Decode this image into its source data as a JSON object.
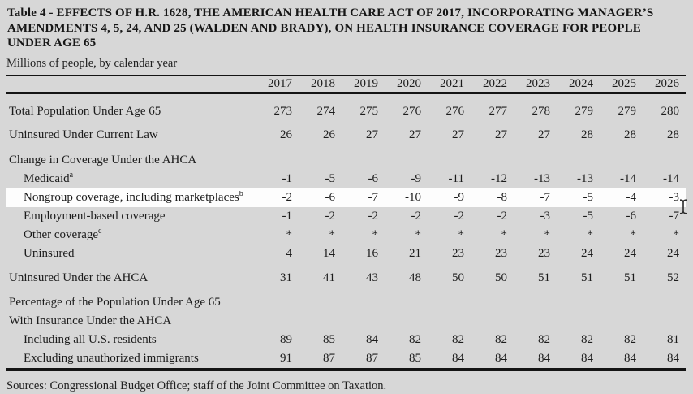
{
  "page": {
    "title_lines": [
      "Table 4 - EFFECTS OF H.R. 1628, THE AMERICAN HEALTH CARE ACT OF 2017, INCORPORATING MANAGER’S",
      "AMENDMENTS 4, 5, 24, AND 25 (WALDEN AND BRADY), ON HEALTH INSURANCE COVERAGE FOR PEOPLE",
      "UNDER AGE 65"
    ],
    "subtitle": "Millions of people, by calendar year",
    "sources": "Sources: Congressional Budget Office; staff of the Joint Committee on Taxation."
  },
  "colors": {
    "page_background": "#d7d7d7",
    "highlight_row_background": "#fdfdfd",
    "text": "#1c1c1c",
    "rule": "#141414"
  },
  "icons": {
    "cursor": "text-ibeam-cursor"
  },
  "chart_data": {
    "type": "table",
    "title": "Table 4 - EFFECTS OF H.R. 1628, THE AMERICAN HEALTH CARE ACT OF 2017, INCORPORATING MANAGER’S AMENDMENTS 4, 5, 24, AND 25 (WALDEN AND BRADY), ON HEALTH INSURANCE COVERAGE FOR PEOPLE UNDER AGE 65",
    "unit_note": "Millions of people, by calendar year",
    "columns": [
      "2017",
      "2018",
      "2019",
      "2020",
      "2021",
      "2022",
      "2023",
      "2024",
      "2025",
      "2026"
    ],
    "rows": [
      {
        "label": "Total Population Under Age 65",
        "indent": 0,
        "gap": "first",
        "values": [
          "273",
          "274",
          "275",
          "276",
          "276",
          "277",
          "278",
          "279",
          "279",
          "280"
        ]
      },
      {
        "label": "Uninsured Under Current Law",
        "indent": 0,
        "gap": "sm",
        "values": [
          "26",
          "26",
          "27",
          "27",
          "27",
          "27",
          "27",
          "28",
          "28",
          "28"
        ]
      },
      {
        "label": "Change in Coverage Under the AHCA",
        "indent": 0,
        "gap": "lg",
        "values": []
      },
      {
        "label": "Medicaid",
        "sup": "a",
        "indent": 1,
        "values": [
          "-1",
          "-5",
          "-6",
          "-9",
          "-11",
          "-12",
          "-13",
          "-13",
          "-14",
          "-14"
        ]
      },
      {
        "label": "Nongroup coverage, including marketplaces",
        "sup": "b",
        "indent": 1,
        "highlight": true,
        "values": [
          "-2",
          "-6",
          "-7",
          "-10",
          "-9",
          "-8",
          "-7",
          "-5",
          "-4",
          "-3"
        ]
      },
      {
        "label": "Employment-based coverage",
        "indent": 1,
        "values": [
          "-1",
          "-2",
          "-2",
          "-2",
          "-2",
          "-2",
          "-3",
          "-5",
          "-6",
          "-7"
        ]
      },
      {
        "label": "Other coverage",
        "sup": "c",
        "indent": 1,
        "values": [
          "*",
          "*",
          "*",
          "*",
          "*",
          "*",
          "*",
          "*",
          "*",
          "*"
        ]
      },
      {
        "label": "Uninsured",
        "indent": 1,
        "values": [
          "4",
          "14",
          "16",
          "21",
          "23",
          "23",
          "23",
          "24",
          "24",
          "24"
        ]
      },
      {
        "label": "Uninsured Under the AHCA",
        "indent": 0,
        "gap": "md",
        "values": [
          "31",
          "41",
          "43",
          "48",
          "50",
          "50",
          "51",
          "51",
          "51",
          "52"
        ]
      },
      {
        "label": "Percentage of the Population Under Age 65",
        "indent": 0,
        "gap": "md",
        "values": []
      },
      {
        "label": "With Insurance Under the AHCA",
        "indent": 0,
        "values": []
      },
      {
        "label": "Including all U.S. residents",
        "indent": 1,
        "values": [
          "89",
          "85",
          "84",
          "82",
          "82",
          "82",
          "82",
          "82",
          "82",
          "81"
        ]
      },
      {
        "label": "Excluding unauthorized immigrants",
        "indent": 1,
        "values": [
          "91",
          "87",
          "87",
          "85",
          "84",
          "84",
          "84",
          "84",
          "84",
          "84"
        ]
      }
    ]
  }
}
